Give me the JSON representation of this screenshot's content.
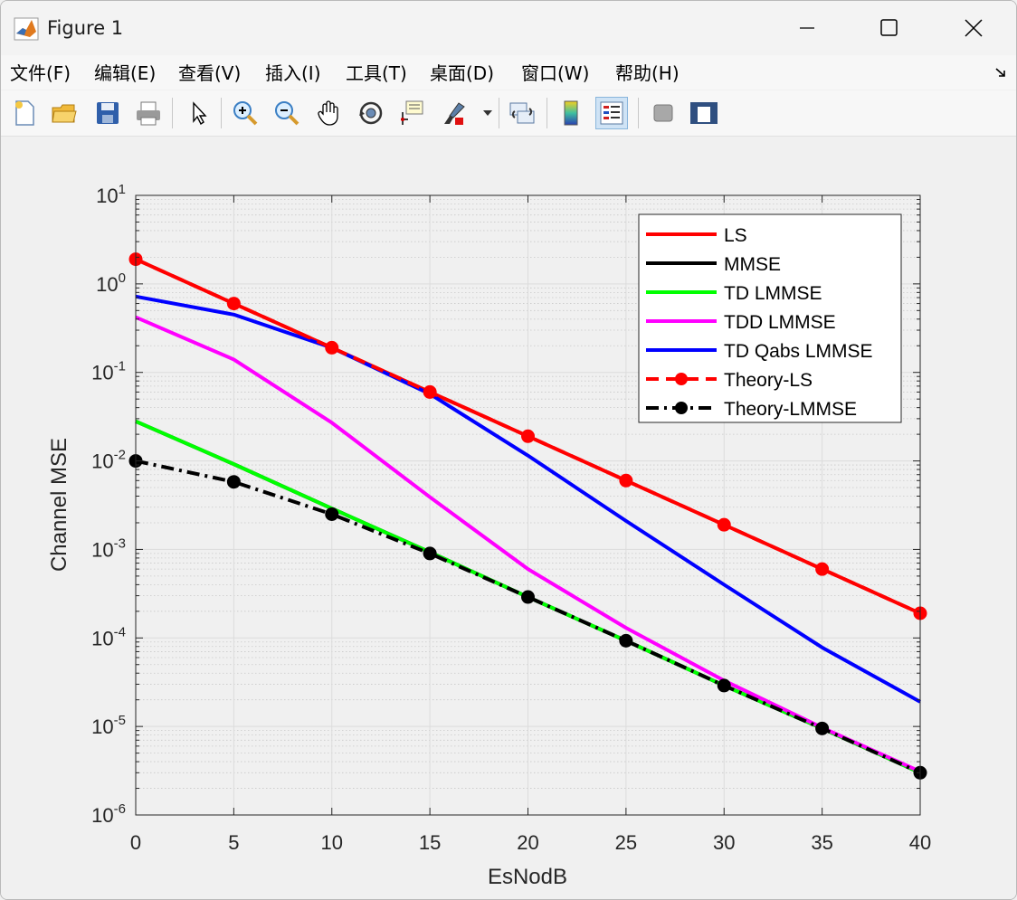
{
  "window": {
    "title": "Figure 1"
  },
  "menu": [
    {
      "label": "文件(F)"
    },
    {
      "label": "编辑(E)"
    },
    {
      "label": "查看(V)"
    },
    {
      "label": "插入(I)"
    },
    {
      "label": "工具(T)"
    },
    {
      "label": "桌面(D)"
    },
    {
      "label": "窗口(W)"
    },
    {
      "label": "帮助(H)"
    }
  ],
  "toolbar_icons": [
    "new-figure-icon",
    "open-file-icon",
    "save-icon",
    "print-icon",
    "select-arrow-icon",
    "zoom-in-icon",
    "zoom-out-icon",
    "pan-hand-icon",
    "rotate-3d-icon",
    "data-cursor-icon",
    "brush-icon",
    "link-plot-icon",
    "colorbar-icon",
    "legend-icon",
    "hide-plot-tools-icon",
    "show-plot-tools-icon"
  ],
  "chart_data": {
    "type": "line",
    "xlabel": "EsNodB",
    "ylabel": "Channel MSE",
    "xlim": [
      0,
      40
    ],
    "ylim": [
      1e-06,
      10
    ],
    "yscale": "log",
    "grid": true,
    "minor_grid": true,
    "legend_position": "top-right",
    "xticks": [
      "0",
      "5",
      "10",
      "15",
      "20",
      "25",
      "30",
      "35",
      "40"
    ],
    "yticks": [
      {
        "base": "10",
        "exp": "1",
        "value": 10
      },
      {
        "base": "10",
        "exp": "0",
        "value": 1
      },
      {
        "base": "10",
        "exp": "-1",
        "value": 0.1
      },
      {
        "base": "10",
        "exp": "-2",
        "value": 0.01
      },
      {
        "base": "10",
        "exp": "-3",
        "value": 0.001
      },
      {
        "base": "10",
        "exp": "-4",
        "value": 0.0001
      },
      {
        "base": "10",
        "exp": "-5",
        "value": 1e-05
      },
      {
        "base": "10",
        "exp": "-6",
        "value": 1e-06
      }
    ],
    "x": [
      0,
      5,
      10,
      15,
      20,
      25,
      30,
      35,
      40
    ],
    "series": [
      {
        "name": "LS",
        "color": "#ff0000",
        "style": "solid",
        "marker": false,
        "values": [
          1.9,
          0.6,
          0.19,
          0.06,
          0.019,
          0.006,
          0.0019,
          0.0006,
          0.00019
        ]
      },
      {
        "name": "MMSE",
        "color": "#000000",
        "style": "solid",
        "marker": false,
        "values": [
          0.028,
          0.0092,
          0.0029,
          0.00093,
          0.00029,
          9.3e-05,
          2.9e-05,
          9.5e-06,
          3e-06
        ]
      },
      {
        "name": "TD LMMSE",
        "color": "#00ff00",
        "style": "solid",
        "marker": false,
        "values": [
          0.028,
          0.0092,
          0.0029,
          0.00093,
          0.00029,
          9.3e-05,
          2.9e-05,
          9.5e-06,
          3e-06
        ]
      },
      {
        "name": "TDD LMMSE",
        "color": "#ff00ff",
        "style": "solid",
        "marker": false,
        "values": [
          0.42,
          0.14,
          0.027,
          0.0039,
          0.0006,
          0.00013,
          3.3e-05,
          9.7e-06,
          3.1e-06
        ]
      },
      {
        "name": "TD Qabs LMMSE",
        "color": "#0000ff",
        "style": "solid",
        "marker": false,
        "values": [
          0.72,
          0.45,
          0.19,
          0.057,
          0.0115,
          0.0021,
          0.0004,
          7.8e-05,
          1.9e-05
        ]
      },
      {
        "name": "Theory-LS",
        "color": "#ff0000",
        "style": "dashed",
        "marker": true,
        "values": [
          1.9,
          0.6,
          0.19,
          0.06,
          0.019,
          0.006,
          0.0019,
          0.0006,
          0.00019
        ]
      },
      {
        "name": "Theory-LMMSE",
        "color": "#000000",
        "style": "dashdot",
        "marker": true,
        "values": [
          0.01,
          0.0058,
          0.0025,
          0.0009,
          0.00029,
          9.3e-05,
          2.9e-05,
          9.5e-06,
          3e-06
        ]
      }
    ]
  }
}
